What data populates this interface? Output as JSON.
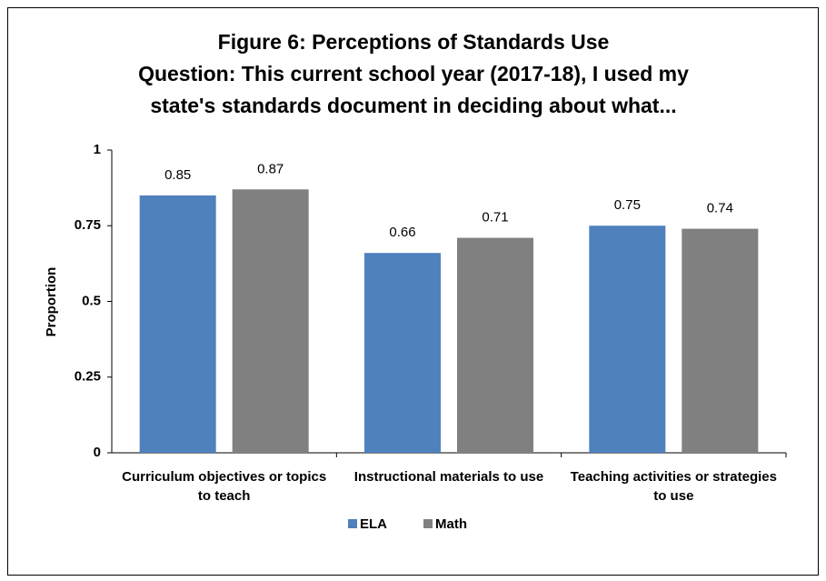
{
  "chart_data": {
    "type": "bar",
    "title": [
      "Figure 6: Perceptions of Standards Use",
      "Question: This current school year (2017-18), I used my",
      "state's standards document in deciding about what..."
    ],
    "ylabel": "Proportion",
    "categories": [
      "Curriculum objectives or topics to teach",
      "Instructional materials to use",
      "Teaching activities or strategies to use"
    ],
    "series": [
      {
        "name": "ELA",
        "color": "#4f81bd",
        "values": [
          0.85,
          0.66,
          0.75
        ]
      },
      {
        "name": "Math",
        "color": "#808080",
        "values": [
          0.87,
          0.71,
          0.74
        ]
      }
    ],
    "ylim": [
      0,
      1
    ],
    "yticks": [
      0,
      0.25,
      0.5,
      0.75,
      1
    ],
    "grid": false,
    "legend": "bottom"
  }
}
